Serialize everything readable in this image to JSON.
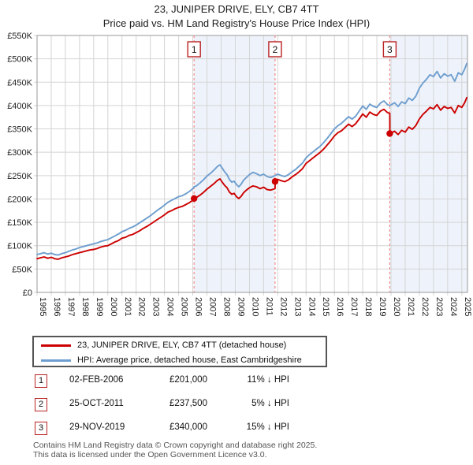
{
  "title": "23, JUNIPER DRIVE, ELY, CB7 4TT",
  "subtitle": "Price paid vs. HM Land Registry's House Price Index (HPI)",
  "colors": {
    "price_line": "#cc0000",
    "hpi_line": "#6e9ecf",
    "band": "#eef3fb",
    "grid": "#d4d4d4",
    "border": "#999999",
    "event_line": "#f28b8b",
    "flag_border": "#bb2222"
  },
  "chart_data": {
    "type": "line",
    "title": "23, JUNIPER DRIVE, ELY, CB7 4TT — Price paid vs. HPI",
    "xlabel": "",
    "ylabel": "",
    "x_range": [
      1995.0,
      2025.4
    ],
    "ylim_thousands": [
      0,
      550
    ],
    "y_tick_values": [
      0,
      50,
      100,
      150,
      200,
      250,
      300,
      350,
      400,
      450,
      500,
      550
    ],
    "y_tick_labels": [
      "£0",
      "£50K",
      "£100K",
      "£150K",
      "£200K",
      "£250K",
      "£300K",
      "£350K",
      "£400K",
      "£450K",
      "£500K",
      "£550K"
    ],
    "x_tick_years": [
      1995,
      1996,
      1997,
      1998,
      1999,
      2000,
      2001,
      2002,
      2003,
      2004,
      2005,
      2006,
      2007,
      2008,
      2009,
      2010,
      2011,
      2012,
      2013,
      2014,
      2015,
      2016,
      2017,
      2018,
      2019,
      2020,
      2021,
      2022,
      2023,
      2024,
      2025
    ],
    "grid": true,
    "legend_position": "bottom",
    "bands": [
      [
        2006.09,
        2011.81
      ],
      [
        2019.91,
        2025.4
      ]
    ],
    "series": [
      {
        "id": "hpi",
        "name": "HPI: Average price, detached house, East Cambridgeshire",
        "color": "#6e9ecf",
        "points_k": [
          [
            1995.0,
            81
          ],
          [
            1995.25,
            83
          ],
          [
            1995.5,
            85
          ],
          [
            1995.75,
            82
          ],
          [
            1996.0,
            84
          ],
          [
            1996.25,
            81
          ],
          [
            1996.5,
            80
          ],
          [
            1996.75,
            83
          ],
          [
            1997.0,
            85
          ],
          [
            1997.25,
            88
          ],
          [
            1997.5,
            91
          ],
          [
            1997.75,
            93
          ],
          [
            1998.0,
            96
          ],
          [
            1998.25,
            98
          ],
          [
            1998.5,
            100
          ],
          [
            1998.75,
            102
          ],
          [
            1999.0,
            104
          ],
          [
            1999.25,
            106
          ],
          [
            1999.5,
            109
          ],
          [
            1999.75,
            111
          ],
          [
            2000.0,
            113
          ],
          [
            2000.25,
            117
          ],
          [
            2000.5,
            121
          ],
          [
            2000.75,
            125
          ],
          [
            2001.0,
            130
          ],
          [
            2001.25,
            133
          ],
          [
            2001.5,
            137
          ],
          [
            2001.75,
            140
          ],
          [
            2002.0,
            144
          ],
          [
            2002.25,
            149
          ],
          [
            2002.5,
            154
          ],
          [
            2002.75,
            159
          ],
          [
            2003.0,
            164
          ],
          [
            2003.25,
            170
          ],
          [
            2003.5,
            176
          ],
          [
            2003.75,
            181
          ],
          [
            2004.0,
            187
          ],
          [
            2004.25,
            193
          ],
          [
            2004.5,
            197
          ],
          [
            2004.75,
            201
          ],
          [
            2005.0,
            205
          ],
          [
            2005.25,
            207
          ],
          [
            2005.5,
            211
          ],
          [
            2005.75,
            216
          ],
          [
            2006.0,
            222
          ],
          [
            2006.09,
            226
          ],
          [
            2006.25,
            228
          ],
          [
            2006.5,
            234
          ],
          [
            2006.75,
            241
          ],
          [
            2007.0,
            249
          ],
          [
            2007.25,
            255
          ],
          [
            2007.5,
            262
          ],
          [
            2007.75,
            270
          ],
          [
            2007.92,
            273
          ],
          [
            2008.08,
            266
          ],
          [
            2008.25,
            258
          ],
          [
            2008.42,
            252
          ],
          [
            2008.58,
            242
          ],
          [
            2008.75,
            236
          ],
          [
            2008.92,
            238
          ],
          [
            2009.08,
            231
          ],
          [
            2009.25,
            226
          ],
          [
            2009.42,
            232
          ],
          [
            2009.58,
            240
          ],
          [
            2009.75,
            245
          ],
          [
            2010.0,
            252
          ],
          [
            2010.25,
            257
          ],
          [
            2010.5,
            254
          ],
          [
            2010.75,
            250
          ],
          [
            2011.0,
            253
          ],
          [
            2011.25,
            248
          ],
          [
            2011.5,
            246
          ],
          [
            2011.81,
            250
          ],
          [
            2012.0,
            253
          ],
          [
            2012.25,
            250
          ],
          [
            2012.5,
            248
          ],
          [
            2012.75,
            252
          ],
          [
            2013.0,
            258
          ],
          [
            2013.25,
            263
          ],
          [
            2013.5,
            270
          ],
          [
            2013.75,
            277
          ],
          [
            2014.0,
            288
          ],
          [
            2014.25,
            295
          ],
          [
            2014.5,
            301
          ],
          [
            2014.75,
            307
          ],
          [
            2015.0,
            313
          ],
          [
            2015.25,
            321
          ],
          [
            2015.5,
            330
          ],
          [
            2015.75,
            340
          ],
          [
            2016.0,
            350
          ],
          [
            2016.25,
            357
          ],
          [
            2016.5,
            362
          ],
          [
            2016.75,
            369
          ],
          [
            2017.0,
            376
          ],
          [
            2017.25,
            371
          ],
          [
            2017.5,
            377
          ],
          [
            2017.75,
            388
          ],
          [
            2018.0,
            399
          ],
          [
            2018.25,
            392
          ],
          [
            2018.5,
            403
          ],
          [
            2018.75,
            398
          ],
          [
            2019.0,
            396
          ],
          [
            2019.25,
            405
          ],
          [
            2019.5,
            410
          ],
          [
            2019.75,
            402
          ],
          [
            2019.91,
            400
          ],
          [
            2020.25,
            406
          ],
          [
            2020.5,
            398
          ],
          [
            2020.75,
            408
          ],
          [
            2021.0,
            404
          ],
          [
            2021.25,
            416
          ],
          [
            2021.5,
            411
          ],
          [
            2021.75,
            420
          ],
          [
            2022.0,
            437
          ],
          [
            2022.25,
            448
          ],
          [
            2022.5,
            456
          ],
          [
            2022.75,
            466
          ],
          [
            2023.0,
            462
          ],
          [
            2023.25,
            473
          ],
          [
            2023.5,
            459
          ],
          [
            2023.75,
            468
          ],
          [
            2024.0,
            463
          ],
          [
            2024.25,
            466
          ],
          [
            2024.5,
            452
          ],
          [
            2024.75,
            470
          ],
          [
            2025.0,
            466
          ],
          [
            2025.2,
            478
          ],
          [
            2025.35,
            490
          ]
        ]
      },
      {
        "id": "price-paid",
        "name": "23, JUNIPER DRIVE, ELY, CB7 4TT (detached house)",
        "color": "#cc0000",
        "points_k": [
          [
            1995.0,
            72
          ],
          [
            1995.25,
            74
          ],
          [
            1995.5,
            76
          ],
          [
            1995.75,
            73
          ],
          [
            1996.0,
            75
          ],
          [
            1996.25,
            72
          ],
          [
            1996.5,
            71
          ],
          [
            1996.75,
            74
          ],
          [
            1997.0,
            76
          ],
          [
            1997.25,
            78
          ],
          [
            1997.5,
            81
          ],
          [
            1997.75,
            83
          ],
          [
            1998.0,
            85
          ],
          [
            1998.25,
            87
          ],
          [
            1998.5,
            89
          ],
          [
            1998.75,
            91
          ],
          [
            1999.0,
            92
          ],
          [
            1999.25,
            94
          ],
          [
            1999.5,
            97
          ],
          [
            1999.75,
            99
          ],
          [
            2000.0,
            100
          ],
          [
            2000.25,
            104
          ],
          [
            2000.5,
            108
          ],
          [
            2000.75,
            111
          ],
          [
            2001.0,
            116
          ],
          [
            2001.25,
            118
          ],
          [
            2001.5,
            122
          ],
          [
            2001.75,
            124
          ],
          [
            2002.0,
            128
          ],
          [
            2002.25,
            132
          ],
          [
            2002.5,
            137
          ],
          [
            2002.75,
            141
          ],
          [
            2003.0,
            146
          ],
          [
            2003.25,
            151
          ],
          [
            2003.5,
            156
          ],
          [
            2003.75,
            161
          ],
          [
            2004.0,
            166
          ],
          [
            2004.25,
            172
          ],
          [
            2004.5,
            175
          ],
          [
            2004.75,
            179
          ],
          [
            2005.0,
            182
          ],
          [
            2005.25,
            184
          ],
          [
            2005.5,
            188
          ],
          [
            2005.75,
            192
          ],
          [
            2006.0,
            197
          ],
          [
            2006.09,
            201
          ],
          [
            2006.25,
            203
          ],
          [
            2006.5,
            208
          ],
          [
            2006.75,
            214
          ],
          [
            2007.0,
            221
          ],
          [
            2007.25,
            227
          ],
          [
            2007.5,
            233
          ],
          [
            2007.75,
            240
          ],
          [
            2007.92,
            243
          ],
          [
            2008.08,
            236
          ],
          [
            2008.25,
            229
          ],
          [
            2008.42,
            224
          ],
          [
            2008.58,
            215
          ],
          [
            2008.75,
            210
          ],
          [
            2008.92,
            212
          ],
          [
            2009.08,
            205
          ],
          [
            2009.25,
            201
          ],
          [
            2009.42,
            206
          ],
          [
            2009.58,
            213
          ],
          [
            2009.75,
            218
          ],
          [
            2010.0,
            224
          ],
          [
            2010.25,
            228
          ],
          [
            2010.5,
            226
          ],
          [
            2010.75,
            222
          ],
          [
            2011.0,
            225
          ],
          [
            2011.25,
            220
          ],
          [
            2011.5,
            219
          ],
          [
            2011.81,
            222
          ],
          [
            2011.82,
            237.5
          ],
          [
            2012.0,
            242
          ],
          [
            2012.25,
            239
          ],
          [
            2012.5,
            237
          ],
          [
            2012.75,
            241
          ],
          [
            2013.0,
            247
          ],
          [
            2013.25,
            252
          ],
          [
            2013.5,
            258
          ],
          [
            2013.75,
            265
          ],
          [
            2014.0,
            276
          ],
          [
            2014.25,
            282
          ],
          [
            2014.5,
            288
          ],
          [
            2014.75,
            294
          ],
          [
            2015.0,
            300
          ],
          [
            2015.25,
            307
          ],
          [
            2015.5,
            316
          ],
          [
            2015.75,
            325
          ],
          [
            2016.0,
            335
          ],
          [
            2016.25,
            342
          ],
          [
            2016.5,
            346
          ],
          [
            2016.75,
            353
          ],
          [
            2017.0,
            360
          ],
          [
            2017.25,
            355
          ],
          [
            2017.5,
            361
          ],
          [
            2017.75,
            371
          ],
          [
            2018.0,
            382
          ],
          [
            2018.25,
            375
          ],
          [
            2018.5,
            386
          ],
          [
            2018.75,
            381
          ],
          [
            2019.0,
            379
          ],
          [
            2019.25,
            388
          ],
          [
            2019.5,
            392
          ],
          [
            2019.75,
            385
          ],
          [
            2019.91,
            383
          ],
          [
            2019.92,
            340
          ],
          [
            2020.25,
            345
          ],
          [
            2020.5,
            338
          ],
          [
            2020.75,
            347
          ],
          [
            2021.0,
            343
          ],
          [
            2021.25,
            354
          ],
          [
            2021.5,
            349
          ],
          [
            2021.75,
            357
          ],
          [
            2022.0,
            371
          ],
          [
            2022.25,
            381
          ],
          [
            2022.5,
            388
          ],
          [
            2022.75,
            396
          ],
          [
            2023.0,
            393
          ],
          [
            2023.25,
            402
          ],
          [
            2023.5,
            390
          ],
          [
            2023.75,
            398
          ],
          [
            2024.0,
            394
          ],
          [
            2024.25,
            396
          ],
          [
            2024.5,
            384
          ],
          [
            2024.75,
            400
          ],
          [
            2025.0,
            396
          ],
          [
            2025.2,
            406
          ],
          [
            2025.35,
            417
          ]
        ]
      }
    ],
    "sales": [
      {
        "n": "1",
        "year": 2006.09,
        "price_k": 201
      },
      {
        "n": "2",
        "year": 2011.81,
        "price_k": 237.5
      },
      {
        "n": "3",
        "year": 2019.91,
        "price_k": 340
      }
    ]
  },
  "legend": {
    "items": [
      {
        "label": "23, JUNIPER DRIVE, ELY, CB7 4TT (detached house)",
        "color": "#cc0000"
      },
      {
        "label": "HPI: Average price, detached house, East Cambridgeshire",
        "color": "#6e9ecf"
      }
    ]
  },
  "transactions": [
    {
      "num": "1",
      "date": "02-FEB-2006",
      "price": "£201,000",
      "vs_hpi": "11% ↓ HPI"
    },
    {
      "num": "2",
      "date": "25-OCT-2011",
      "price": "£237,500",
      "vs_hpi": "5% ↓ HPI"
    },
    {
      "num": "3",
      "date": "29-NOV-2019",
      "price": "£340,000",
      "vs_hpi": "15% ↓ HPI"
    }
  ],
  "footer": {
    "line1": "Contains HM Land Registry data © Crown copyright and database right 2025.",
    "line2": "This data is licensed under the Open Government Licence v3.0."
  }
}
